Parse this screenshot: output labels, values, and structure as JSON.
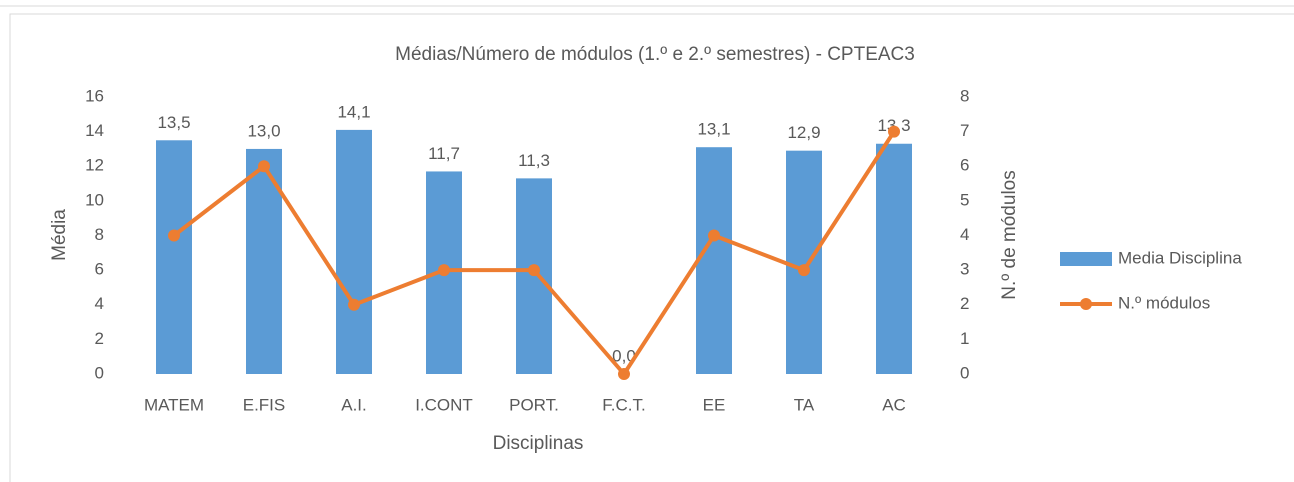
{
  "chart_data": {
    "type": "bar",
    "title": "Médias/Número de módulos (1.º e 2.º semestres) - CPTEAC3",
    "xlabel": "Disciplinas",
    "ylabel": "Média",
    "y2label": "N.º de módulos",
    "categories": [
      "MATEM",
      "E.FIS",
      "A.I.",
      "I.CONT",
      "PORT.",
      "F.C.T.",
      "EE",
      "TA",
      "AC"
    ],
    "series": [
      {
        "name": "Media Disciplina",
        "type": "bar",
        "color": "#5b9bd5",
        "values": [
          13.5,
          13.0,
          14.1,
          11.7,
          11.3,
          0.0,
          13.1,
          12.9,
          13.3
        ],
        "value_labels": [
          "13,5",
          "13,0",
          "14,1",
          "11,7",
          "11,3",
          "0,0",
          "13,1",
          "12,9",
          "13,3"
        ]
      },
      {
        "name": "N.º módulos",
        "type": "line",
        "axis": "y2",
        "color": "#ed7d31",
        "values": [
          4,
          6,
          2,
          3,
          3,
          0,
          4,
          3,
          7
        ]
      }
    ],
    "ylim": [
      0,
      16
    ],
    "yticks": [
      0,
      2,
      4,
      6,
      8,
      10,
      12,
      14,
      16
    ],
    "y2lim": [
      0,
      8
    ],
    "y2ticks": [
      0,
      1,
      2,
      3,
      4,
      5,
      6,
      7,
      8
    ],
    "legend": "right",
    "grid": false
  }
}
